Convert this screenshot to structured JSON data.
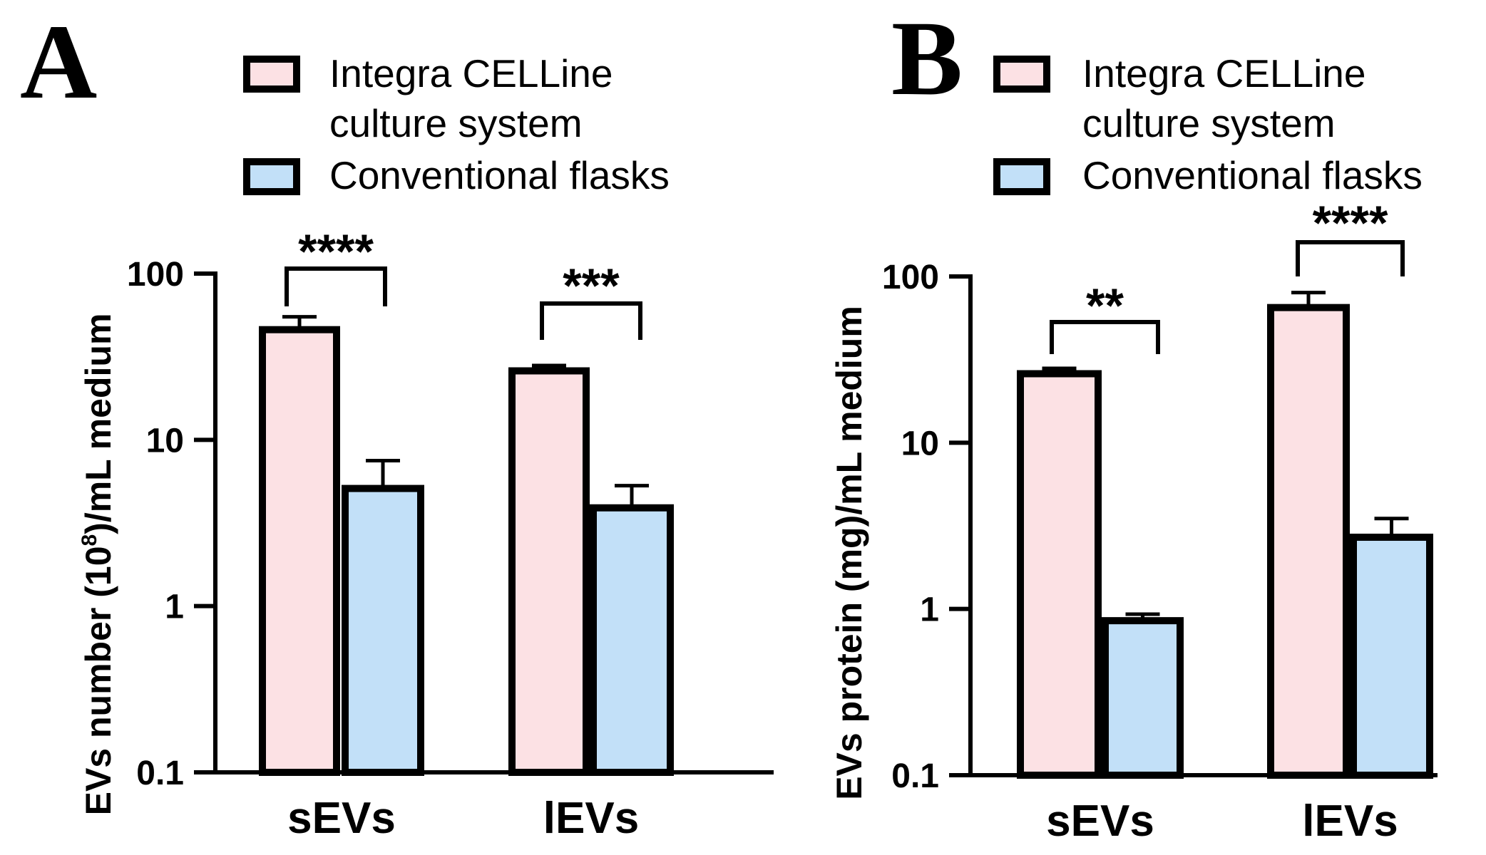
{
  "figure": {
    "colors": {
      "integra": "#FCE1E4",
      "conventional": "#C2E0F8",
      "stroke": "#000000"
    },
    "legend": {
      "integra_line1": "Integra CELLine",
      "integra_line2": "culture system",
      "conventional": "Conventional flasks"
    }
  },
  "chart_data": [
    {
      "panel": "A",
      "type": "bar",
      "yscale": "log",
      "ylim": [
        0.1,
        100
      ],
      "yticks": [
        "0.1",
        "1",
        "10",
        "100"
      ],
      "ylabel_main": "EVs number (10",
      "ylabel_sup": "8",
      "ylabel_tail": ")/mL medium",
      "categories": [
        "sEVs",
        "lEVs"
      ],
      "series": [
        {
          "name": "Integra CELLine culture system",
          "values": [
            46,
            26
          ],
          "errors": [
            55,
            28
          ]
        },
        {
          "name": "Conventional flasks",
          "values": [
            5.1,
            3.9
          ],
          "errors": [
            7.5,
            5.3
          ]
        }
      ],
      "significance": [
        "****",
        "***"
      ]
    },
    {
      "panel": "B",
      "type": "bar",
      "yscale": "log",
      "ylim": [
        0.1,
        100
      ],
      "yticks": [
        "0.1",
        "1",
        "10",
        "100"
      ],
      "ylabel_main": "EVs protein (mg)/mL medium",
      "categories": [
        "sEVs",
        "lEVs"
      ],
      "series": [
        {
          "name": "Integra CELLine culture system",
          "values": [
            26,
            65
          ],
          "errors": [
            28,
            80
          ]
        },
        {
          "name": "Conventional flasks",
          "values": [
            0.85,
            2.7
          ],
          "errors": [
            0.93,
            3.5
          ]
        }
      ],
      "significance": [
        "**",
        "****"
      ]
    }
  ]
}
